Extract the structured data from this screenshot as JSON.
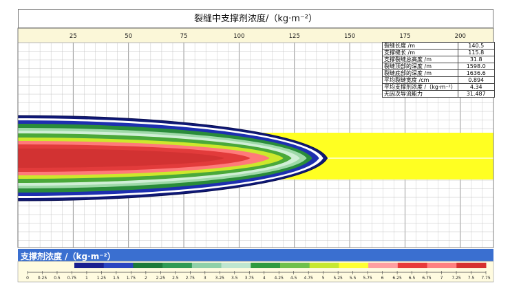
{
  "chart_data": {
    "type": "heatmap",
    "title": "裂缝中支撑剂浓度/（kg·m⁻²）",
    "x_ticks": [
      "25",
      "50",
      "75",
      "100",
      "125",
      "150",
      "175",
      "200"
    ],
    "x_range": [
      0,
      215
    ],
    "fracture_length_m": 140.5,
    "propped_length_m": 115.8,
    "colorbar": {
      "title": "支撑剂浓度 /（kg·m⁻²）",
      "ticks": [
        "0",
        "0.25",
        "0.5",
        "0.75",
        "1",
        "1.25",
        "1.5",
        "1.75",
        "2",
        "2.25",
        "2.5",
        "2.75",
        "3",
        "3.25",
        "3.5",
        "3.75",
        "4",
        "4.25",
        "4.5",
        "4.75",
        "5",
        "5.25",
        "5.5",
        "5.75",
        "6",
        "6.25",
        "6.5",
        "6.75",
        "7",
        "7.25",
        "7.5",
        "7.75"
      ],
      "colors": [
        "#1a1f8f",
        "#2a45c0",
        "#1d7a3a",
        "#2f9a55",
        "#8fd0a8",
        "#bfe6cf",
        "#2e9a3e",
        "#6fc04a",
        "#c6e830",
        "#ffff33",
        "#ff9fa0",
        "#e83a3a",
        "#ff8080",
        "#d63030"
      ]
    },
    "stats": [
      {
        "label": "裂缝长度 /m",
        "value": "140.5"
      },
      {
        "label": "支撑缝长 /m",
        "value": "115.8"
      },
      {
        "label": "支撑裂缝总高度 /m",
        "value": "31.8"
      },
      {
        "label": "裂缝顶部的深度 /m",
        "value": "1598.0"
      },
      {
        "label": "裂缝底部的深度 /m",
        "value": "1636.6"
      },
      {
        "label": "平均裂缝宽度 /cm",
        "value": "0.894"
      },
      {
        "label": "平均支撑剂浓度 /（kg·m⁻²）",
        "value": "4.34"
      },
      {
        "label": "无因次导流能力",
        "value": "31.487"
      }
    ]
  }
}
